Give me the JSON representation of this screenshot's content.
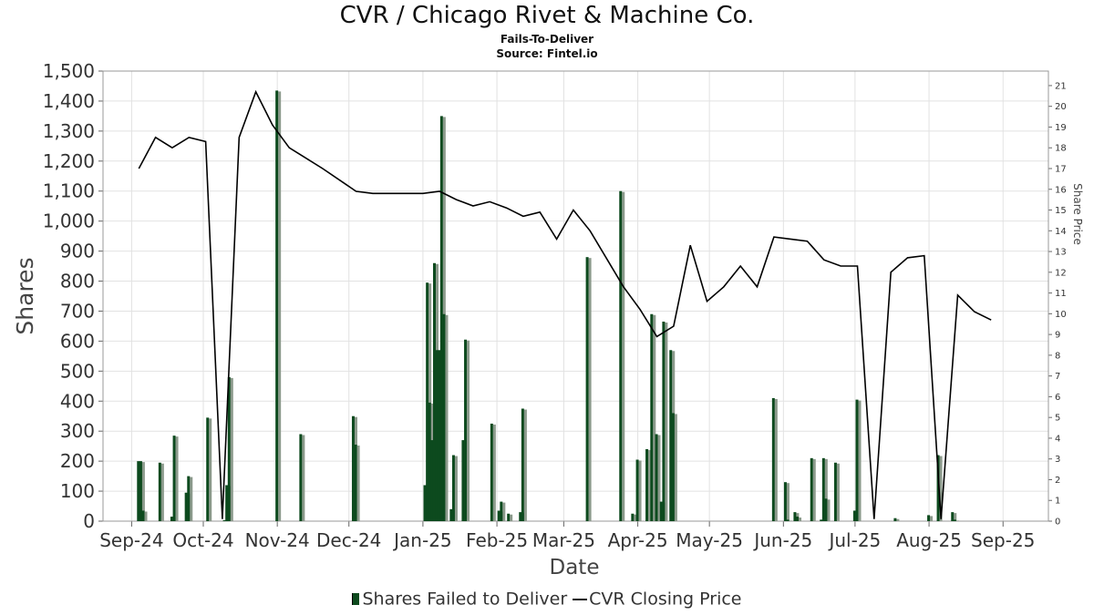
{
  "chart_data": {
    "type": "bar",
    "title": "CVR / Chicago Rivet & Machine Co.",
    "subtitle": "Fails-To-Deliver",
    "source": "Source: Fintel.io",
    "xlabel": "Date",
    "ylabel": "Shares",
    "y2label": "Share Price",
    "ylim": [
      0,
      1500
    ],
    "y2lim": [
      0,
      21.7
    ],
    "y_ticks": [
      0,
      100,
      200,
      300,
      400,
      500,
      600,
      700,
      800,
      900,
      1000,
      1100,
      1200,
      1300,
      1400,
      1500
    ],
    "y_tick_labels": [
      "0",
      "100",
      "200",
      "300",
      "400",
      "500",
      "600",
      "700",
      "800",
      "900",
      "1,000",
      "1,100",
      "1,200",
      "1,300",
      "1,400",
      "1,500"
    ],
    "y2_ticks": [
      0,
      1,
      2,
      3,
      4,
      5,
      6,
      7,
      8,
      9,
      10,
      11,
      12,
      13,
      14,
      15,
      16,
      17,
      18,
      19,
      20,
      21
    ],
    "x_range": [
      "2024-08-20",
      "2025-09-20"
    ],
    "x_tick_dates": [
      "2024-09-01",
      "2024-10-01",
      "2024-11-01",
      "2024-12-01",
      "2025-01-01",
      "2025-02-01",
      "2025-03-01",
      "2025-04-01",
      "2025-05-01",
      "2025-06-01",
      "2025-07-01",
      "2025-08-01",
      "2025-09-01"
    ],
    "x_tick_labels": [
      "Sep-24",
      "Oct-24",
      "Nov-24",
      "Dec-24",
      "Jan-25",
      "Feb-25",
      "Mar-25",
      "Apr-25",
      "May-25",
      "Jun-25",
      "Jul-25",
      "Aug-25",
      "Sep-25"
    ],
    "grid": true,
    "legend_position": "bottom",
    "colors": {
      "bar": "#0d4a1e",
      "bar_shadow": "#8c9a8c",
      "line": "#000000",
      "grid": "#e2e2e2"
    },
    "series": [
      {
        "name": "Shares Failed to Deliver",
        "type": "bar",
        "x": [
          "2024-09-04",
          "2024-09-05",
          "2024-09-06",
          "2024-09-13",
          "2024-09-18",
          "2024-09-19",
          "2024-09-24",
          "2024-09-25",
          "2024-10-03",
          "2024-10-10",
          "2024-10-11",
          "2024-10-12",
          "2024-11-01",
          "2024-11-11",
          "2024-12-03",
          "2024-12-04",
          "2025-01-02",
          "2025-01-03",
          "2025-01-04",
          "2025-01-05",
          "2025-01-06",
          "2025-01-07",
          "2025-01-08",
          "2025-01-09",
          "2025-01-10",
          "2025-01-13",
          "2025-01-14",
          "2025-01-18",
          "2025-01-19",
          "2025-01-30",
          "2025-02-02",
          "2025-02-03",
          "2025-02-06",
          "2025-02-11",
          "2025-02-12",
          "2025-03-11",
          "2025-03-25",
          "2025-03-30",
          "2025-04-01",
          "2025-04-05",
          "2025-04-07",
          "2025-04-09",
          "2025-04-11",
          "2025-04-12",
          "2025-04-15",
          "2025-04-16",
          "2025-05-28",
          "2025-06-02",
          "2025-06-03",
          "2025-06-06",
          "2025-06-07",
          "2025-06-13",
          "2025-06-17",
          "2025-06-18",
          "2025-06-19",
          "2025-06-23",
          "2025-07-01",
          "2025-07-02",
          "2025-07-18",
          "2025-08-01",
          "2025-08-05",
          "2025-08-11",
          "2025-08-12"
        ],
        "values": [
          200,
          200,
          35,
          195,
          15,
          285,
          95,
          150,
          345,
          3,
          120,
          480,
          1435,
          290,
          350,
          255,
          120,
          795,
          395,
          270,
          860,
          570,
          570,
          1350,
          690,
          40,
          220,
          270,
          605,
          325,
          35,
          65,
          25,
          30,
          375,
          880,
          1100,
          25,
          205,
          240,
          690,
          290,
          65,
          665,
          570,
          360,
          410,
          130,
          5,
          30,
          15,
          210,
          5,
          210,
          75,
          195,
          35,
          405,
          10,
          20,
          220,
          30,
          5
        ]
      },
      {
        "name": "CVR Closing Price",
        "type": "line",
        "x": [
          "2024-09-04",
          "2024-09-11",
          "2024-09-18",
          "2024-09-25",
          "2024-10-02",
          "2024-10-09",
          "2024-10-16",
          "2024-10-23",
          "2024-10-30",
          "2024-11-06",
          "2024-11-13",
          "2024-11-20",
          "2024-12-04",
          "2024-12-11",
          "2025-01-01",
          "2025-01-08",
          "2025-01-15",
          "2025-01-22",
          "2025-01-29",
          "2025-02-05",
          "2025-02-12",
          "2025-02-19",
          "2025-02-26",
          "2025-03-05",
          "2025-03-12",
          "2025-03-26",
          "2025-04-02",
          "2025-04-09",
          "2025-04-16",
          "2025-04-23",
          "2025-04-30",
          "2025-05-07",
          "2025-05-14",
          "2025-05-21",
          "2025-05-28",
          "2025-06-04",
          "2025-06-11",
          "2025-06-18",
          "2025-06-25",
          "2025-07-02",
          "2025-07-09",
          "2025-07-16",
          "2025-07-23",
          "2025-07-30",
          "2025-08-06",
          "2025-08-13",
          "2025-08-20",
          "2025-08-27"
        ],
        "values": [
          17.0,
          18.5,
          18.0,
          18.5,
          18.3,
          0.1,
          18.5,
          20.7,
          19.1,
          18.0,
          17.5,
          17.0,
          15.9,
          15.8,
          15.8,
          15.9,
          15.5,
          15.2,
          15.4,
          15.1,
          14.7,
          14.9,
          13.6,
          15.0,
          14.0,
          11.3,
          10.2,
          8.9,
          9.4,
          13.3,
          10.6,
          11.3,
          12.3,
          11.3,
          13.7,
          13.6,
          13.5,
          12.6,
          12.3,
          12.3,
          0.1,
          12.0,
          12.7,
          12.8,
          0.1,
          10.9,
          10.1,
          9.7
        ]
      }
    ]
  },
  "legend": {
    "bar_label": "Shares Failed to Deliver",
    "line_label": "CVR Closing Price"
  }
}
